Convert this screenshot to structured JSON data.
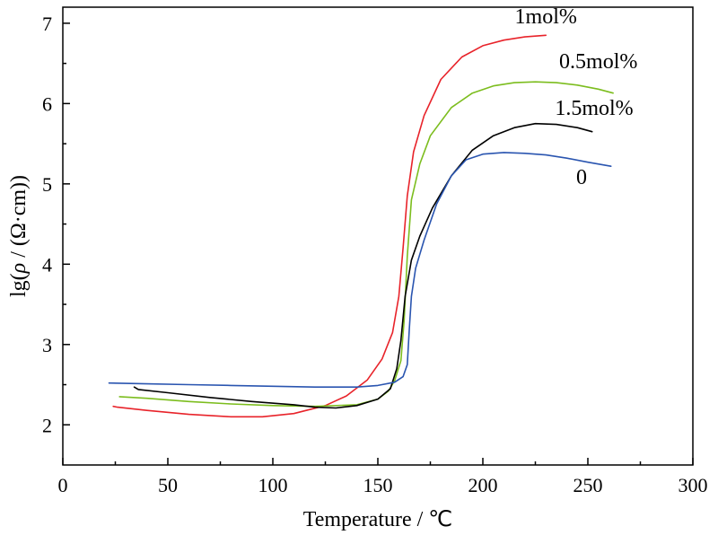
{
  "chart_data": {
    "type": "line",
    "xlabel": "Temperature / ℃",
    "ylabel_prefix": "lg(",
    "ylabel_rho": "ρ",
    "ylabel_suffix": " / (Ω·cm))",
    "xlim": [
      0,
      300
    ],
    "ylim": [
      1.5,
      7.2
    ],
    "xticks": [
      0,
      50,
      100,
      150,
      200,
      250,
      300
    ],
    "yticks": [
      2,
      3,
      4,
      5,
      6,
      7
    ],
    "grid": false,
    "series": [
      {
        "name": "1mol%",
        "color": "#e8232a",
        "points": [
          [
            24,
            2.23
          ],
          [
            26,
            2.22
          ],
          [
            40,
            2.18
          ],
          [
            60,
            2.13
          ],
          [
            80,
            2.1
          ],
          [
            95,
            2.1
          ],
          [
            110,
            2.14
          ],
          [
            125,
            2.24
          ],
          [
            135,
            2.36
          ],
          [
            145,
            2.56
          ],
          [
            152,
            2.82
          ],
          [
            157,
            3.15
          ],
          [
            160,
            3.6
          ],
          [
            162,
            4.2
          ],
          [
            164,
            4.85
          ],
          [
            167,
            5.4
          ],
          [
            172,
            5.85
          ],
          [
            180,
            6.3
          ],
          [
            190,
            6.58
          ],
          [
            200,
            6.72
          ],
          [
            210,
            6.79
          ],
          [
            220,
            6.83
          ],
          [
            230,
            6.85
          ]
        ]
      },
      {
        "name": "0.5mol%",
        "color": "#7cbd1e",
        "points": [
          [
            27,
            2.35
          ],
          [
            40,
            2.33
          ],
          [
            60,
            2.29
          ],
          [
            80,
            2.26
          ],
          [
            100,
            2.24
          ],
          [
            120,
            2.23
          ],
          [
            140,
            2.25
          ],
          [
            150,
            2.32
          ],
          [
            155,
            2.42
          ],
          [
            158,
            2.55
          ],
          [
            161,
            2.8
          ],
          [
            162.5,
            3.3
          ],
          [
            164,
            4.1
          ],
          [
            166,
            4.8
          ],
          [
            170,
            5.25
          ],
          [
            175,
            5.6
          ],
          [
            185,
            5.95
          ],
          [
            195,
            6.13
          ],
          [
            205,
            6.22
          ],
          [
            215,
            6.26
          ],
          [
            225,
            6.27
          ],
          [
            235,
            6.26
          ],
          [
            245,
            6.23
          ],
          [
            255,
            6.18
          ],
          [
            262,
            6.13
          ]
        ]
      },
      {
        "name": "1.5mol%",
        "color": "#000000",
        "points": [
          [
            34,
            2.47
          ],
          [
            36,
            2.44
          ],
          [
            50,
            2.4
          ],
          [
            70,
            2.34
          ],
          [
            90,
            2.29
          ],
          [
            110,
            2.25
          ],
          [
            120,
            2.22
          ],
          [
            130,
            2.21
          ],
          [
            140,
            2.24
          ],
          [
            150,
            2.32
          ],
          [
            156,
            2.45
          ],
          [
            159,
            2.7
          ],
          [
            161,
            3.05
          ],
          [
            163,
            3.6
          ],
          [
            166,
            4.05
          ],
          [
            170,
            4.35
          ],
          [
            176,
            4.7
          ],
          [
            185,
            5.1
          ],
          [
            195,
            5.42
          ],
          [
            205,
            5.6
          ],
          [
            215,
            5.7
          ],
          [
            225,
            5.75
          ],
          [
            235,
            5.74
          ],
          [
            245,
            5.7
          ],
          [
            252,
            5.65
          ]
        ]
      },
      {
        "name": "0",
        "color": "#2a55b0",
        "points": [
          [
            22,
            2.52
          ],
          [
            40,
            2.51
          ],
          [
            60,
            2.5
          ],
          [
            80,
            2.49
          ],
          [
            100,
            2.48
          ],
          [
            120,
            2.47
          ],
          [
            140,
            2.47
          ],
          [
            150,
            2.49
          ],
          [
            158,
            2.53
          ],
          [
            162,
            2.6
          ],
          [
            164,
            2.75
          ],
          [
            165,
            3.2
          ],
          [
            166,
            3.6
          ],
          [
            168,
            3.95
          ],
          [
            172,
            4.3
          ],
          [
            178,
            4.75
          ],
          [
            185,
            5.1
          ],
          [
            192,
            5.3
          ],
          [
            200,
            5.37
          ],
          [
            210,
            5.39
          ],
          [
            220,
            5.38
          ],
          [
            230,
            5.36
          ],
          [
            240,
            5.32
          ],
          [
            250,
            5.27
          ],
          [
            261,
            5.22
          ]
        ]
      }
    ],
    "annotations": [
      {
        "text": "1mol%",
        "x": 230,
        "y": 7.0
      },
      {
        "text": "0.5mol%",
        "x": 255,
        "y": 6.44
      },
      {
        "text": "1.5mol%",
        "x": 253,
        "y": 5.86
      },
      {
        "text": "0",
        "x": 247,
        "y": 5.0
      }
    ]
  }
}
